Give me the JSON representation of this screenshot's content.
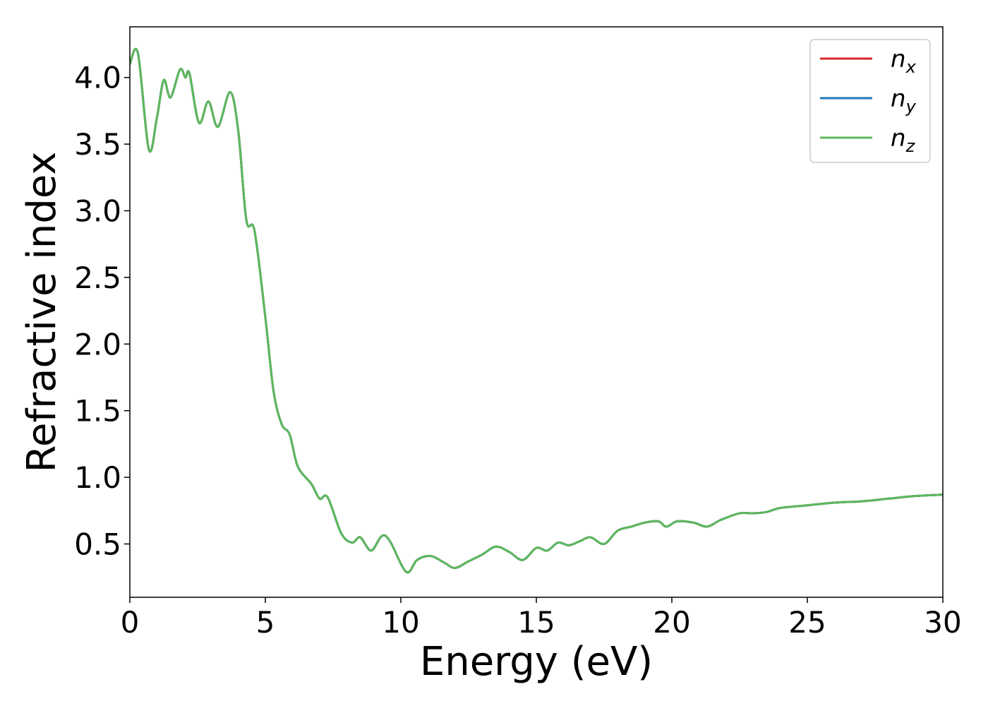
{
  "chart_data": {
    "type": "line",
    "title": "",
    "xlabel": "Energy (eV)",
    "ylabel": "Refractive index",
    "xlim": [
      0,
      30
    ],
    "ylim": [
      0.1,
      4.38
    ],
    "x_ticks": [
      0,
      5,
      10,
      15,
      20,
      25,
      30
    ],
    "x_tick_labels": [
      "0",
      "5",
      "10",
      "15",
      "20",
      "25",
      "30"
    ],
    "y_ticks": [
      0.5,
      1.0,
      1.5,
      2.0,
      2.5,
      3.0,
      3.5,
      4.0
    ],
    "y_tick_labels": [
      "0.5",
      "1.0",
      "1.5",
      "2.0",
      "2.5",
      "3.0",
      "3.5",
      "4.0"
    ],
    "grid": false,
    "legend_position": "top-right",
    "series": [
      {
        "name": "n_x",
        "legend_main": "n",
        "legend_sub": "x",
        "color": "#d62728",
        "x": [
          0,
          0.3,
          0.7,
          1.0,
          1.25,
          1.5,
          1.85,
          2.05,
          2.2,
          2.55,
          2.9,
          3.25,
          3.7,
          4.0,
          4.3,
          4.6,
          5.0,
          5.3,
          5.6,
          5.9,
          6.2,
          6.7,
          7.0,
          7.3,
          7.8,
          8.2,
          8.5,
          8.9,
          9.3,
          9.6,
          10.2,
          10.6,
          11.1,
          11.6,
          12.0,
          12.5,
          13.0,
          13.5,
          14.0,
          14.5,
          15.0,
          15.4,
          15.8,
          16.2,
          16.6,
          17.0,
          17.5,
          18.0,
          18.5,
          19.0,
          19.5,
          19.8,
          20.2,
          20.8,
          21.3,
          21.8,
          22.5,
          23.0,
          23.5,
          24.0,
          25.0,
          26.0,
          27.0,
          28.0,
          29.0,
          30.0
        ],
        "y": [
          4.1,
          4.18,
          3.46,
          3.7,
          3.98,
          3.85,
          4.06,
          4.0,
          4.03,
          3.66,
          3.82,
          3.63,
          3.89,
          3.6,
          2.93,
          2.85,
          2.2,
          1.65,
          1.4,
          1.32,
          1.08,
          0.95,
          0.84,
          0.85,
          0.58,
          0.51,
          0.55,
          0.45,
          0.56,
          0.52,
          0.29,
          0.38,
          0.41,
          0.36,
          0.32,
          0.37,
          0.42,
          0.48,
          0.44,
          0.38,
          0.47,
          0.45,
          0.51,
          0.49,
          0.52,
          0.55,
          0.5,
          0.6,
          0.63,
          0.66,
          0.67,
          0.63,
          0.67,
          0.66,
          0.63,
          0.68,
          0.73,
          0.73,
          0.74,
          0.77,
          0.79,
          0.81,
          0.82,
          0.84,
          0.86,
          0.87
        ]
      },
      {
        "name": "n_y",
        "legend_main": "n",
        "legend_sub": "y",
        "color": "#1f77b4",
        "x": [
          0,
          0.3,
          0.7,
          1.0,
          1.25,
          1.5,
          1.85,
          2.05,
          2.2,
          2.55,
          2.9,
          3.25,
          3.7,
          4.0,
          4.3,
          4.6,
          5.0,
          5.3,
          5.6,
          5.9,
          6.2,
          6.7,
          7.0,
          7.3,
          7.8,
          8.2,
          8.5,
          8.9,
          9.3,
          9.6,
          10.2,
          10.6,
          11.1,
          11.6,
          12.0,
          12.5,
          13.0,
          13.5,
          14.0,
          14.5,
          15.0,
          15.4,
          15.8,
          16.2,
          16.6,
          17.0,
          17.5,
          18.0,
          18.5,
          19.0,
          19.5,
          19.8,
          20.2,
          20.8,
          21.3,
          21.8,
          22.5,
          23.0,
          23.5,
          24.0,
          25.0,
          26.0,
          27.0,
          28.0,
          29.0,
          30.0
        ],
        "y": [
          4.1,
          4.18,
          3.46,
          3.7,
          3.98,
          3.85,
          4.06,
          4.0,
          4.03,
          3.66,
          3.82,
          3.63,
          3.89,
          3.6,
          2.93,
          2.85,
          2.2,
          1.65,
          1.4,
          1.32,
          1.08,
          0.95,
          0.84,
          0.85,
          0.58,
          0.51,
          0.55,
          0.45,
          0.56,
          0.52,
          0.29,
          0.38,
          0.41,
          0.36,
          0.32,
          0.37,
          0.42,
          0.48,
          0.44,
          0.38,
          0.47,
          0.45,
          0.51,
          0.49,
          0.52,
          0.55,
          0.5,
          0.6,
          0.63,
          0.66,
          0.67,
          0.63,
          0.67,
          0.66,
          0.63,
          0.68,
          0.73,
          0.73,
          0.74,
          0.77,
          0.79,
          0.81,
          0.82,
          0.84,
          0.86,
          0.87
        ]
      },
      {
        "name": "n_z",
        "legend_main": "n",
        "legend_sub": "z",
        "color": "#5cb85c",
        "x": [
          0,
          0.3,
          0.7,
          1.0,
          1.25,
          1.5,
          1.85,
          2.05,
          2.2,
          2.55,
          2.9,
          3.25,
          3.7,
          4.0,
          4.3,
          4.6,
          5.0,
          5.3,
          5.6,
          5.9,
          6.2,
          6.7,
          7.0,
          7.3,
          7.8,
          8.2,
          8.5,
          8.9,
          9.3,
          9.6,
          10.2,
          10.6,
          11.1,
          11.6,
          12.0,
          12.5,
          13.0,
          13.5,
          14.0,
          14.5,
          15.0,
          15.4,
          15.8,
          16.2,
          16.6,
          17.0,
          17.5,
          18.0,
          18.5,
          19.0,
          19.5,
          19.8,
          20.2,
          20.8,
          21.3,
          21.8,
          22.5,
          23.0,
          23.5,
          24.0,
          25.0,
          26.0,
          27.0,
          28.0,
          29.0,
          30.0
        ],
        "y": [
          4.1,
          4.18,
          3.46,
          3.7,
          3.98,
          3.85,
          4.06,
          4.0,
          4.03,
          3.66,
          3.82,
          3.63,
          3.89,
          3.6,
          2.93,
          2.85,
          2.2,
          1.65,
          1.4,
          1.32,
          1.08,
          0.95,
          0.84,
          0.85,
          0.58,
          0.51,
          0.55,
          0.45,
          0.56,
          0.52,
          0.29,
          0.38,
          0.41,
          0.36,
          0.32,
          0.37,
          0.42,
          0.48,
          0.44,
          0.38,
          0.47,
          0.45,
          0.51,
          0.49,
          0.52,
          0.55,
          0.5,
          0.6,
          0.63,
          0.66,
          0.67,
          0.63,
          0.67,
          0.66,
          0.63,
          0.68,
          0.73,
          0.73,
          0.74,
          0.77,
          0.79,
          0.81,
          0.82,
          0.84,
          0.86,
          0.87
        ]
      }
    ]
  }
}
